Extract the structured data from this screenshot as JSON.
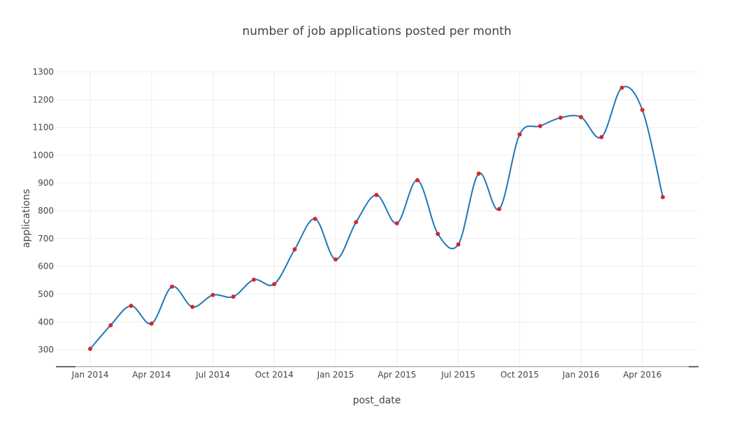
{
  "chart_data": {
    "type": "line",
    "title": "number of job applications posted  per month",
    "xlabel": "post_date",
    "ylabel": "applications",
    "x": [
      "2014-01",
      "2014-02",
      "2014-03",
      "2014-04",
      "2014-05",
      "2014-06",
      "2014-07",
      "2014-08",
      "2014-09",
      "2014-10",
      "2014-11",
      "2014-12",
      "2015-01",
      "2015-02",
      "2015-03",
      "2015-04",
      "2015-05",
      "2015-06",
      "2015-07",
      "2015-08",
      "2015-09",
      "2015-10",
      "2015-11",
      "2015-12",
      "2016-01",
      "2016-02",
      "2016-03",
      "2016-04",
      "2016-05"
    ],
    "values": [
      303,
      388,
      458,
      394,
      527,
      454,
      497,
      491,
      552,
      536,
      661,
      771,
      625,
      759,
      857,
      755,
      910,
      717,
      679,
      934,
      806,
      1075,
      1105,
      1135,
      1137,
      1065,
      1243,
      1163,
      849
    ],
    "x_tick_labels": [
      "Jan 2014",
      "Apr 2014",
      "Jul 2014",
      "Oct 2014",
      "Jan 2015",
      "Apr 2015",
      "Jul 2015",
      "Oct 2015",
      "Jan 2016",
      "Apr 2016"
    ],
    "x_tick_dates": [
      "2014-01",
      "2014-04",
      "2014-07",
      "2014-10",
      "2015-01",
      "2015-04",
      "2015-07",
      "2015-10",
      "2016-01",
      "2016-04"
    ],
    "y_tick_labels": [
      "300",
      "400",
      "500",
      "600",
      "700",
      "800",
      "900",
      "1000",
      "1100",
      "1200",
      "1300"
    ],
    "y_ticks": [
      300,
      400,
      500,
      600,
      700,
      800,
      900,
      1000,
      1100,
      1200,
      1300
    ],
    "ylim": [
      240,
      1300
    ],
    "grid": true,
    "line_shape": "spline",
    "colors": {
      "line": "#1f77b4",
      "marker": "#d62728",
      "grid": "#eeeeee",
      "text": "#444444"
    }
  }
}
